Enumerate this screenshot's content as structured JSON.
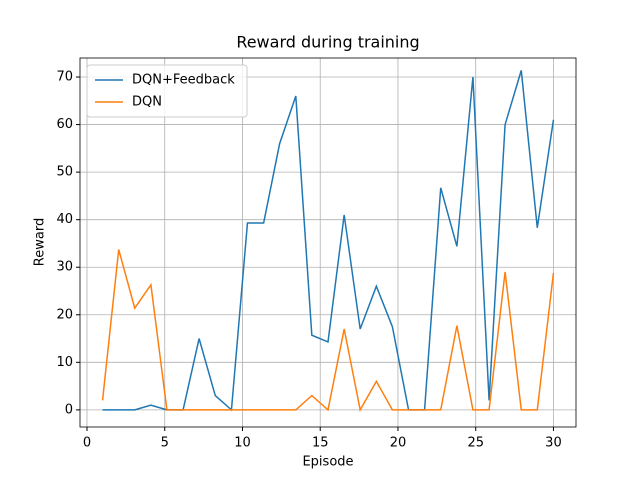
{
  "chart_data": {
    "type": "line",
    "title": "Reward during training",
    "xlabel": "Episode",
    "ylabel": "Reward",
    "x": [
      1,
      2.04,
      3.07,
      4.11,
      5.14,
      6.18,
      7.21,
      8.25,
      9.29,
      10.32,
      11.36,
      12.39,
      13.43,
      14.46,
      15.5,
      16.54,
      17.57,
      18.61,
      19.64,
      20.68,
      21.71,
      22.75,
      23.79,
      24.82,
      25.86,
      26.89,
      27.93,
      28.96,
      30
    ],
    "series": [
      {
        "name": "DQN+Feedback",
        "color": "#1f77b4",
        "values": [
          0,
          0,
          0,
          1,
          0,
          0,
          15,
          3,
          0,
          39.3,
          39.3,
          56,
          66,
          15.7,
          14.3,
          41,
          17,
          26,
          17.5,
          0,
          0,
          46.7,
          34.4,
          70,
          2,
          60,
          71.4,
          38.3,
          61
        ]
      },
      {
        "name": "DQN",
        "color": "#ff7f0e",
        "values": [
          2,
          33.7,
          21.4,
          26.3,
          0,
          0,
          0,
          0,
          0,
          0,
          0,
          0,
          0,
          3,
          0,
          17,
          0,
          6,
          0,
          0,
          0,
          0,
          17.7,
          0,
          0,
          29,
          0,
          0,
          28.8
        ]
      }
    ],
    "xlim": [
      -0.45,
      31.45
    ],
    "xticks": [
      0,
      5,
      10,
      15,
      20,
      25,
      30
    ],
    "ylim": [
      -3.6,
      74
    ],
    "yticks": [
      0,
      10,
      20,
      30,
      40,
      50,
      60,
      70
    ],
    "grid": true,
    "legend": "upper-left"
  }
}
